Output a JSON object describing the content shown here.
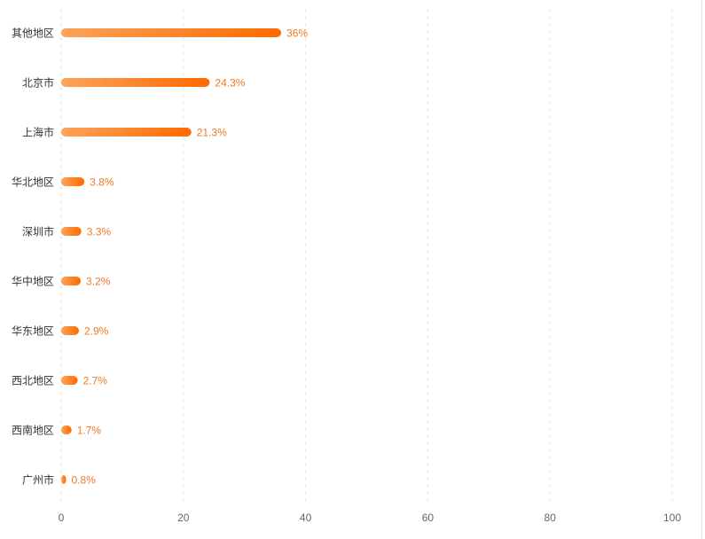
{
  "chart_data": {
    "type": "bar",
    "orientation": "horizontal",
    "categories": [
      "其他地区",
      "北京市",
      "上海市",
      "华北地区",
      "深圳市",
      "华中地区",
      "华东地区",
      "西北地区",
      "西南地区",
      "广州市"
    ],
    "values": [
      36,
      24.3,
      21.3,
      3.8,
      3.3,
      3.2,
      2.9,
      2.7,
      1.7,
      0.8
    ],
    "data_labels": [
      "36%",
      "24.3%",
      "21.3%",
      "3.8%",
      "3.3%",
      "3.2%",
      "2.9%",
      "2.7%",
      "1.7%",
      "0.8%"
    ],
    "xlim": [
      0,
      100
    ],
    "x_ticks": [
      "0",
      "20",
      "40",
      "60",
      "80",
      "100"
    ],
    "grid": "vertical dashed",
    "colors": {
      "bar_start": "#fba35a",
      "bar_end": "#ff6a00",
      "label": "#f07a28",
      "axis_text": "#666666",
      "category_text": "#333333",
      "grid": "#e5e5e5"
    },
    "title": "",
    "xlabel": "",
    "ylabel": ""
  }
}
